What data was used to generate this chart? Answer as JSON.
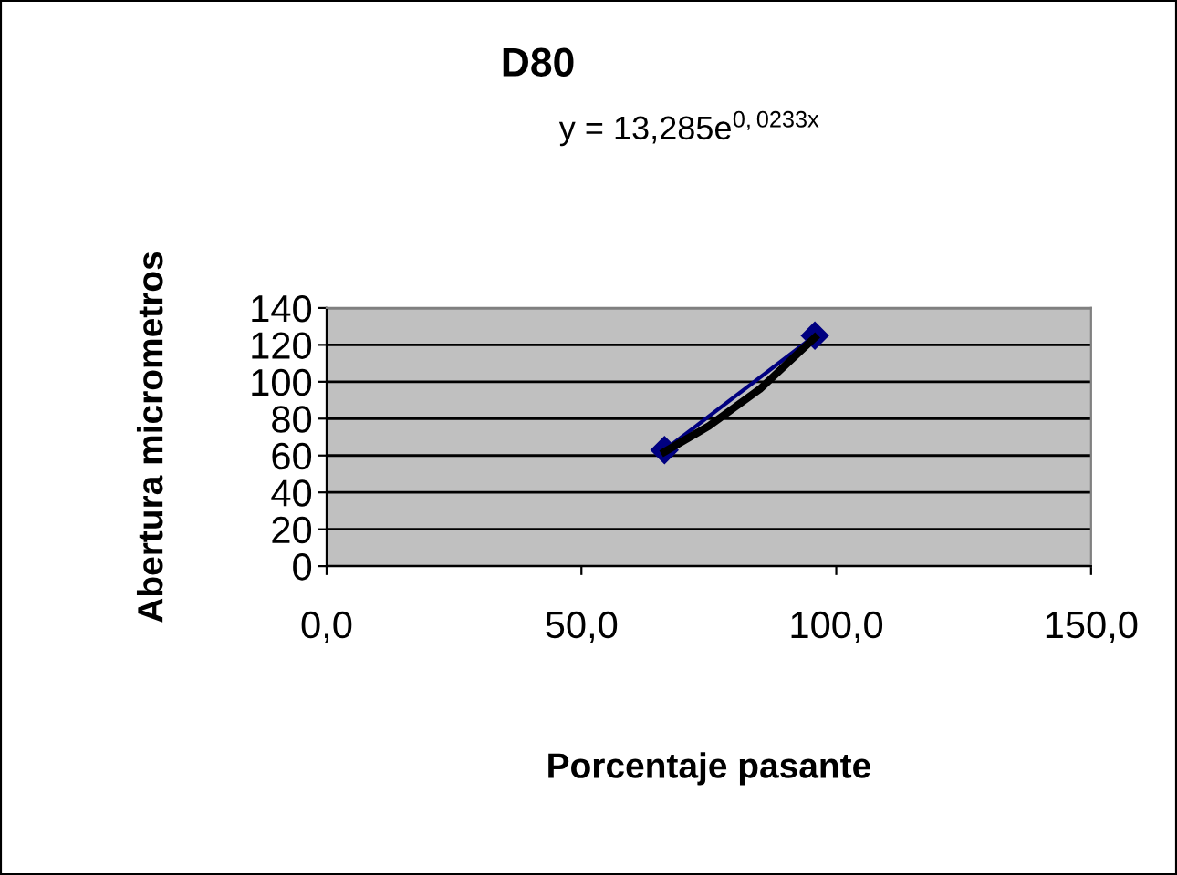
{
  "chart_data": {
    "type": "line",
    "title": "D80",
    "xlabel": "Porcentaje pasante",
    "ylabel": "Abertura micrometros",
    "annotations": [
      "y = 13,285e$^{0,0233x}$"
    ],
    "series": [
      {
        "color": "#000080",
        "x": [
          66.3,
          95.8
        ],
        "values": [
          63,
          125
        ],
        "marker": "diamond",
        "line_style": "solid"
      },
      {
        "color": "#000000",
        "x": [
          66.3,
          75,
          85,
          95.8
        ],
        "values": [
          62,
          76,
          96,
          124
        ],
        "marker": "none",
        "line_style": "solid"
      }
    ],
    "xlim": [
      0,
      150
    ],
    "xticks": [
      {
        "value": 0,
        "label": "0,0"
      },
      {
        "value": 50,
        "label": "50,0"
      },
      {
        "value": 100,
        "label": "100,0"
      },
      {
        "value": 150,
        "label": "150,0"
      }
    ],
    "ylim": [
      0,
      140
    ],
    "yticks": [
      0,
      20,
      40,
      60,
      80,
      100,
      120,
      140
    ],
    "grid": "y",
    "legend": false
  }
}
